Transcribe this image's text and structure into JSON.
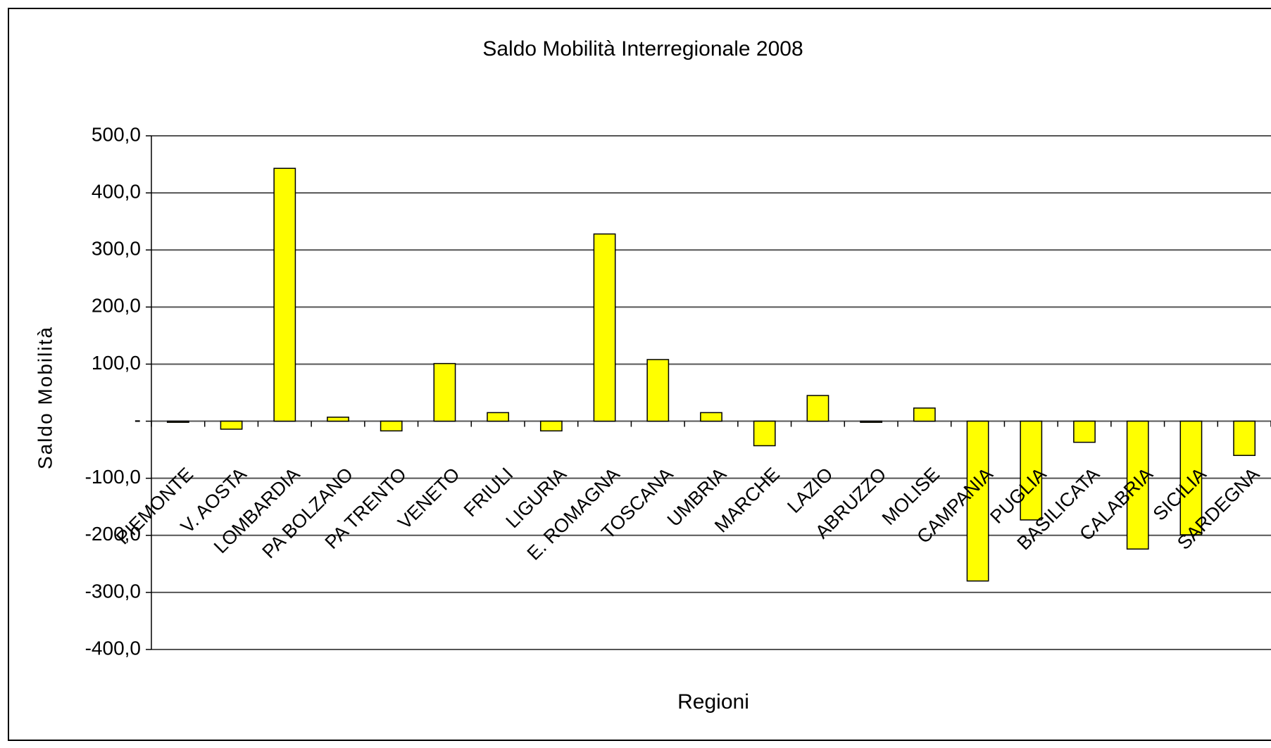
{
  "chart_data": {
    "type": "bar",
    "title": "Saldo Mobilità Interregionale 2008",
    "x_label": "Regioni",
    "y_label": "Saldo Mobilità",
    "categories": [
      "PIEMONTE",
      "V. AOSTA",
      "LOMBARDIA",
      "PA BOLZANO",
      "PA TRENTO",
      "VENETO",
      "FRIULI",
      "LIGURIA",
      "E. ROMAGNA",
      "TOSCANA",
      "UMBRIA",
      "MARCHE",
      "LAZIO",
      "ABRUZZO",
      "MOLISE",
      "CAMPANIA",
      "PUGLIA",
      "BASILICATA",
      "CALABRIA",
      "SICILIA",
      "SARDEGNA"
    ],
    "values": [
      -2,
      -14,
      443,
      7,
      -17,
      101,
      15,
      -17,
      328,
      108,
      15,
      -43,
      45,
      -2,
      23,
      -280,
      -173,
      -37,
      -224,
      -199,
      -60
    ],
    "color": "#ffff00",
    "ylim": [
      -400,
      500
    ],
    "yticks": [
      {
        "value": -400,
        "label": "-400,0"
      },
      {
        "value": -300,
        "label": "-300,0"
      },
      {
        "value": -200,
        "label": "-200,0"
      },
      {
        "value": -100,
        "label": "-100,0"
      },
      {
        "value": 0,
        "label": "-"
      },
      {
        "value": 100,
        "label": "100,0"
      },
      {
        "value": 200,
        "label": "200,0"
      },
      {
        "value": 300,
        "label": "300,0"
      },
      {
        "value": 400,
        "label": "400,0"
      },
      {
        "value": 500,
        "label": "500,0"
      }
    ],
    "grid": true
  }
}
